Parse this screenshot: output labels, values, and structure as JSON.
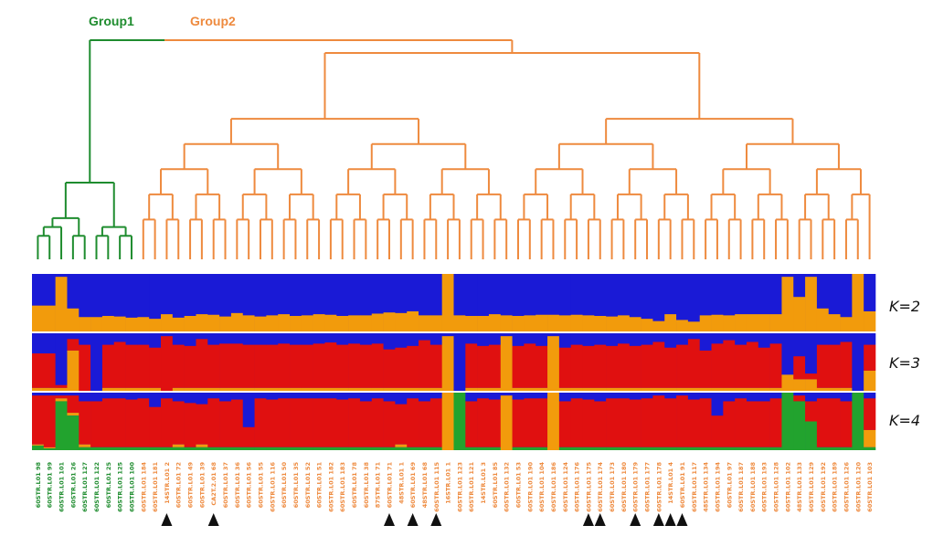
{
  "chart_data": {
    "type": "structure-dendrogram",
    "groups": [
      {
        "name": "Group1",
        "color": "#1e8c2e"
      },
      {
        "name": "Group2",
        "color": "#ee8a3e"
      }
    ],
    "k_panels": [
      {
        "label": "K=2",
        "colors": [
          "#1a1ad6",
          "#f29b0c"
        ]
      },
      {
        "label": "K=3",
        "colors": [
          "#1a1ad6",
          "#e01010",
          "#f29b0c"
        ]
      },
      {
        "label": "K=4",
        "colors": [
          "#1a1ad6",
          "#e01010",
          "#f29b0c",
          "#22a32e"
        ]
      }
    ],
    "samples": [
      {
        "label": "60STR.L01 98",
        "group": 1
      },
      {
        "label": "60STR.L01 99",
        "group": 1
      },
      {
        "label": "60STR.L01 101",
        "group": 1
      },
      {
        "label": "60STR.L01 26",
        "group": 1
      },
      {
        "label": "60STR.L01 127",
        "group": 1
      },
      {
        "label": "60STR.L01 122",
        "group": 1
      },
      {
        "label": "60STR.L01 25",
        "group": 1
      },
      {
        "label": "60STR.L01 125",
        "group": 1
      },
      {
        "label": "60STR.L01 100",
        "group": 1
      },
      {
        "label": "60STR.L01 184",
        "group": 2
      },
      {
        "label": "60STR.L01 181",
        "group": 2
      },
      {
        "label": "14STR.L01 2",
        "group": 2
      },
      {
        "label": "60STR.L01 72",
        "group": 2
      },
      {
        "label": "60STR.L01 49",
        "group": 2
      },
      {
        "label": "60STR.L01 39",
        "group": 2
      },
      {
        "label": "CA2T.2.01 68",
        "group": 2
      },
      {
        "label": "60STR.L01 37",
        "group": 2
      },
      {
        "label": "60STR.L01 36",
        "group": 2
      },
      {
        "label": "60STR.L01 56",
        "group": 2
      },
      {
        "label": "60STR.L01 55",
        "group": 2
      },
      {
        "label": "60STR.L01 116",
        "group": 2
      },
      {
        "label": "60STR.L01 50",
        "group": 2
      },
      {
        "label": "60STR.L01 35",
        "group": 2
      },
      {
        "label": "60STR.L01 52",
        "group": 2
      },
      {
        "label": "60STR.L01 51",
        "group": 2
      },
      {
        "label": "60STR.L01 182",
        "group": 2
      },
      {
        "label": "60STR.L01 183",
        "group": 2
      },
      {
        "label": "60STR.L01 78",
        "group": 2
      },
      {
        "label": "60STR.L01 38",
        "group": 2
      },
      {
        "label": "87STR.L01 71",
        "group": 2
      },
      {
        "label": "60STR.L01 71",
        "group": 2
      },
      {
        "label": "48STR.L01 1",
        "group": 2
      },
      {
        "label": "60STR.L01 69",
        "group": 2
      },
      {
        "label": "48STR.L01 68",
        "group": 2
      },
      {
        "label": "60STR.L01 115",
        "group": 2
      },
      {
        "label": "16STR.L01 1",
        "group": 2
      },
      {
        "label": "60STR.L01 123",
        "group": 2
      },
      {
        "label": "60STR.L01 121",
        "group": 2
      },
      {
        "label": "14STR.L01 3",
        "group": 2
      },
      {
        "label": "60STR.L01 85",
        "group": 2
      },
      {
        "label": "60STR.L01 132",
        "group": 2
      },
      {
        "label": "60STR.L01 53",
        "group": 2
      },
      {
        "label": "60STR.L01 190",
        "group": 2
      },
      {
        "label": "60STR.L01 104",
        "group": 2
      },
      {
        "label": "60STR.L01 186",
        "group": 2
      },
      {
        "label": "60STR.L01 124",
        "group": 2
      },
      {
        "label": "60STR.L01 176",
        "group": 2
      },
      {
        "label": "60STR.L01 175",
        "group": 2
      },
      {
        "label": "60STR.L01 174",
        "group": 2
      },
      {
        "label": "60STR.L01 173",
        "group": 2
      },
      {
        "label": "60STR.L01 180",
        "group": 2
      },
      {
        "label": "60STR.L01 179",
        "group": 2
      },
      {
        "label": "60STR.L01 177",
        "group": 2
      },
      {
        "label": "60STR.L01 178",
        "group": 2
      },
      {
        "label": "14STR.L01 4",
        "group": 2
      },
      {
        "label": "60STR.L01 91",
        "group": 2
      },
      {
        "label": "60STR.L01 117",
        "group": 2
      },
      {
        "label": "48STR.L01 134",
        "group": 2
      },
      {
        "label": "60STR.L01 194",
        "group": 2
      },
      {
        "label": "60STR.L01 97",
        "group": 2
      },
      {
        "label": "60STR.L01 187",
        "group": 2
      },
      {
        "label": "60STR.L01 188",
        "group": 2
      },
      {
        "label": "60STR.L01 193",
        "group": 2
      },
      {
        "label": "60STR.L01 128",
        "group": 2
      },
      {
        "label": "60STR.L01 102",
        "group": 2
      },
      {
        "label": "48STR.L01 133",
        "group": 2
      },
      {
        "label": "60STR.L01 129",
        "group": 2
      },
      {
        "label": "60STR.L01 192",
        "group": 2
      },
      {
        "label": "60STR.L01 189",
        "group": 2
      },
      {
        "label": "60STR.L01 126",
        "group": 2
      },
      {
        "label": "60STR.L01 120",
        "group": 2
      },
      {
        "label": "60STR.L01 103",
        "group": 2
      }
    ],
    "marked_samples": [
      11,
      15,
      30,
      32,
      34,
      47,
      48,
      51,
      53,
      54,
      55
    ],
    "k2": [
      0.45,
      0.45,
      0.95,
      0.4,
      0.25,
      0.25,
      0.27,
      0.26,
      0.24,
      0.25,
      0.22,
      0.3,
      0.24,
      0.27,
      0.3,
      0.29,
      0.26,
      0.32,
      0.28,
      0.26,
      0.28,
      0.3,
      0.27,
      0.28,
      0.3,
      0.29,
      0.27,
      0.28,
      0.28,
      0.31,
      0.33,
      0.32,
      0.35,
      0.28,
      0.28,
      1.0,
      0.28,
      0.27,
      0.27,
      0.3,
      0.28,
      0.27,
      0.28,
      0.29,
      0.29,
      0.28,
      0.29,
      0.28,
      0.27,
      0.26,
      0.28,
      0.25,
      0.22,
      0.18,
      0.3,
      0.2,
      0.17,
      0.28,
      0.29,
      0.28,
      0.3,
      0.3,
      0.3,
      0.3,
      0.95,
      0.6,
      0.95,
      0.4,
      0.3,
      0.25,
      1.0,
      0.35
    ],
    "k3": [
      [
        0.35,
        0.6,
        0.05
      ],
      [
        0.35,
        0.6,
        0.05
      ],
      [
        0.9,
        0.05,
        0.05
      ],
      [
        0.1,
        0.2,
        0.7
      ],
      [
        0.2,
        0.8,
        0.0
      ],
      [
        1.0,
        0.0,
        0.0
      ],
      [
        0.2,
        0.75,
        0.05
      ],
      [
        0.15,
        0.8,
        0.05
      ],
      [
        0.2,
        0.75,
        0.05
      ],
      [
        0.2,
        0.75,
        0.05
      ],
      [
        0.25,
        0.7,
        0.05
      ],
      [
        0.05,
        0.95,
        0.0
      ],
      [
        0.2,
        0.75,
        0.05
      ],
      [
        0.22,
        0.73,
        0.05
      ],
      [
        0.1,
        0.85,
        0.05
      ],
      [
        0.2,
        0.75,
        0.05
      ],
      [
        0.18,
        0.77,
        0.05
      ],
      [
        0.18,
        0.77,
        0.05
      ],
      [
        0.2,
        0.75,
        0.05
      ],
      [
        0.2,
        0.75,
        0.05
      ],
      [
        0.2,
        0.75,
        0.05
      ],
      [
        0.18,
        0.77,
        0.05
      ],
      [
        0.2,
        0.75,
        0.05
      ],
      [
        0.2,
        0.75,
        0.05
      ],
      [
        0.18,
        0.77,
        0.05
      ],
      [
        0.16,
        0.79,
        0.05
      ],
      [
        0.2,
        0.75,
        0.05
      ],
      [
        0.18,
        0.77,
        0.05
      ],
      [
        0.2,
        0.75,
        0.05
      ],
      [
        0.18,
        0.77,
        0.05
      ],
      [
        0.28,
        0.67,
        0.05
      ],
      [
        0.25,
        0.7,
        0.05
      ],
      [
        0.22,
        0.73,
        0.05
      ],
      [
        0.12,
        0.83,
        0.05
      ],
      [
        0.2,
        0.75,
        0.05
      ],
      [
        0.05,
        0.0,
        0.95
      ],
      [
        1.0,
        0.0,
        0.0
      ],
      [
        0.18,
        0.77,
        0.05
      ],
      [
        0.22,
        0.73,
        0.05
      ],
      [
        0.2,
        0.75,
        0.05
      ],
      [
        0.05,
        0.0,
        0.95
      ],
      [
        0.22,
        0.73,
        0.05
      ],
      [
        0.18,
        0.77,
        0.05
      ],
      [
        0.22,
        0.73,
        0.05
      ],
      [
        0.05,
        0.0,
        0.95
      ],
      [
        0.25,
        0.7,
        0.05
      ],
      [
        0.2,
        0.75,
        0.05
      ],
      [
        0.22,
        0.73,
        0.05
      ],
      [
        0.2,
        0.75,
        0.05
      ],
      [
        0.22,
        0.73,
        0.05
      ],
      [
        0.18,
        0.77,
        0.05
      ],
      [
        0.22,
        0.73,
        0.05
      ],
      [
        0.2,
        0.75,
        0.05
      ],
      [
        0.15,
        0.8,
        0.05
      ],
      [
        0.25,
        0.7,
        0.05
      ],
      [
        0.2,
        0.75,
        0.05
      ],
      [
        0.1,
        0.85,
        0.05
      ],
      [
        0.3,
        0.65,
        0.05
      ],
      [
        0.18,
        0.77,
        0.05
      ],
      [
        0.12,
        0.83,
        0.05
      ],
      [
        0.2,
        0.75,
        0.05
      ],
      [
        0.15,
        0.8,
        0.05
      ],
      [
        0.25,
        0.7,
        0.05
      ],
      [
        0.18,
        0.77,
        0.05
      ],
      [
        0.72,
        0.0,
        0.28
      ],
      [
        0.4,
        0.4,
        0.2
      ],
      [
        0.7,
        0.1,
        0.2
      ],
      [
        0.2,
        0.75,
        0.05
      ],
      [
        0.2,
        0.75,
        0.05
      ],
      [
        0.15,
        0.8,
        0.05
      ],
      [
        1.0,
        0.0,
        0.0
      ],
      [
        0.2,
        0.45,
        0.35
      ]
    ],
    "k4": [
      [
        0.05,
        0.85,
        0.02,
        0.08
      ],
      [
        0.05,
        0.9,
        0.02,
        0.03
      ],
      [
        0.05,
        0.05,
        0.05,
        0.85
      ],
      [
        0.05,
        0.3,
        0.05,
        0.6
      ],
      [
        0.15,
        0.75,
        0.05,
        0.05
      ],
      [
        0.15,
        0.8,
        0.0,
        0.05
      ],
      [
        0.1,
        0.85,
        0.0,
        0.05
      ],
      [
        0.1,
        0.85,
        0.0,
        0.05
      ],
      [
        0.12,
        0.83,
        0.0,
        0.05
      ],
      [
        0.1,
        0.85,
        0.0,
        0.05
      ],
      [
        0.25,
        0.7,
        0.0,
        0.05
      ],
      [
        0.1,
        0.85,
        0.0,
        0.05
      ],
      [
        0.15,
        0.75,
        0.05,
        0.05
      ],
      [
        0.18,
        0.77,
        0.0,
        0.05
      ],
      [
        0.2,
        0.7,
        0.05,
        0.05
      ],
      [
        0.1,
        0.85,
        0.0,
        0.05
      ],
      [
        0.15,
        0.8,
        0.0,
        0.05
      ],
      [
        0.12,
        0.83,
        0.0,
        0.05
      ],
      [
        0.6,
        0.35,
        0.0,
        0.05
      ],
      [
        0.1,
        0.85,
        0.0,
        0.05
      ],
      [
        0.12,
        0.83,
        0.0,
        0.05
      ],
      [
        0.1,
        0.85,
        0.0,
        0.05
      ],
      [
        0.1,
        0.85,
        0.0,
        0.05
      ],
      [
        0.1,
        0.85,
        0.0,
        0.05
      ],
      [
        0.1,
        0.85,
        0.0,
        0.05
      ],
      [
        0.1,
        0.85,
        0.0,
        0.05
      ],
      [
        0.12,
        0.83,
        0.0,
        0.05
      ],
      [
        0.1,
        0.85,
        0.0,
        0.05
      ],
      [
        0.15,
        0.8,
        0.0,
        0.05
      ],
      [
        0.1,
        0.85,
        0.0,
        0.05
      ],
      [
        0.15,
        0.8,
        0.0,
        0.05
      ],
      [
        0.2,
        0.7,
        0.05,
        0.05
      ],
      [
        0.1,
        0.85,
        0.0,
        0.05
      ],
      [
        0.15,
        0.8,
        0.0,
        0.05
      ],
      [
        0.1,
        0.85,
        0.0,
        0.05
      ],
      [
        0.0,
        0.0,
        1.0,
        0.0
      ],
      [
        0.0,
        0.0,
        0.0,
        1.0
      ],
      [
        0.15,
        0.8,
        0.0,
        0.05
      ],
      [
        0.1,
        0.85,
        0.0,
        0.05
      ],
      [
        0.12,
        0.83,
        0.0,
        0.05
      ],
      [
        0.05,
        0.0,
        0.95,
        0.0
      ],
      [
        0.12,
        0.83,
        0.0,
        0.05
      ],
      [
        0.1,
        0.85,
        0.0,
        0.05
      ],
      [
        0.1,
        0.85,
        0.0,
        0.05
      ],
      [
        0.0,
        0.0,
        1.0,
        0.0
      ],
      [
        0.15,
        0.8,
        0.0,
        0.05
      ],
      [
        0.1,
        0.85,
        0.0,
        0.05
      ],
      [
        0.12,
        0.83,
        0.0,
        0.05
      ],
      [
        0.15,
        0.8,
        0.0,
        0.05
      ],
      [
        0.1,
        0.85,
        0.0,
        0.05
      ],
      [
        0.1,
        0.85,
        0.0,
        0.05
      ],
      [
        0.12,
        0.83,
        0.0,
        0.05
      ],
      [
        0.1,
        0.85,
        0.0,
        0.05
      ],
      [
        0.05,
        0.9,
        0.0,
        0.05
      ],
      [
        0.1,
        0.85,
        0.0,
        0.05
      ],
      [
        0.05,
        0.9,
        0.0,
        0.05
      ],
      [
        0.12,
        0.83,
        0.0,
        0.05
      ],
      [
        0.1,
        0.85,
        0.0,
        0.05
      ],
      [
        0.4,
        0.55,
        0.0,
        0.05
      ],
      [
        0.15,
        0.8,
        0.0,
        0.05
      ],
      [
        0.1,
        0.85,
        0.0,
        0.05
      ],
      [
        0.15,
        0.8,
        0.0,
        0.05
      ],
      [
        0.15,
        0.8,
        0.0,
        0.05
      ],
      [
        0.1,
        0.85,
        0.0,
        0.05
      ],
      [
        0.0,
        0.0,
        0.0,
        1.0
      ],
      [
        0.05,
        0.1,
        0.0,
        0.85
      ],
      [
        0.15,
        0.35,
        0.0,
        0.5
      ],
      [
        0.1,
        0.85,
        0.0,
        0.05
      ],
      [
        0.1,
        0.85,
        0.0,
        0.05
      ],
      [
        0.15,
        0.8,
        0.0,
        0.05
      ],
      [
        0.0,
        0.0,
        0.0,
        1.0
      ],
      [
        0.1,
        0.55,
        0.3,
        0.05
      ]
    ]
  }
}
